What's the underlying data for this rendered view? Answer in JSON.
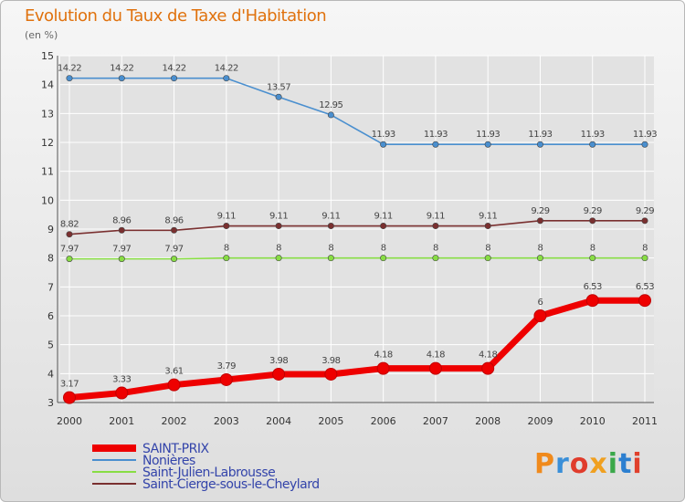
{
  "chart_data": {
    "type": "line",
    "title": "Evolution du Taux de Taxe d'Habitation",
    "subtitle": "(en %)",
    "x": [
      "2000",
      "2001",
      "2002",
      "2003",
      "2004",
      "2005",
      "2006",
      "2007",
      "2008",
      "2009",
      "2010",
      "2011"
    ],
    "ylim": [
      3,
      15
    ],
    "yticks": [
      3,
      4,
      5,
      6,
      7,
      8,
      9,
      10,
      11,
      12,
      13,
      14,
      15
    ],
    "grid": true,
    "legend_position": "bottom-left",
    "series": [
      {
        "name": "SAINT-PRIX",
        "color": "#ee0000",
        "emphasis": true,
        "values": [
          3.17,
          3.33,
          3.61,
          3.79,
          3.98,
          3.98,
          4.18,
          4.18,
          4.18,
          6,
          6.53,
          6.53
        ],
        "labels": [
          "3.17",
          "3.33",
          "3.61",
          "3.79",
          "3.98",
          "3.98",
          "4.18",
          "4.18",
          "4.18",
          "6",
          "6.53",
          "6.53"
        ]
      },
      {
        "name": "Nonières",
        "color": "#4a8fcf",
        "emphasis": false,
        "values": [
          14.22,
          14.22,
          14.22,
          14.22,
          13.57,
          12.95,
          11.93,
          11.93,
          11.93,
          11.93,
          11.93,
          11.93
        ],
        "labels": [
          "14.22",
          "14.22",
          "14.22",
          "14.22",
          "13.57",
          "12.95",
          "11.93",
          "11.93",
          "11.93",
          "11.93",
          "11.93",
          "11.93"
        ]
      },
      {
        "name": "Saint-Julien-Labrousse",
        "color": "#88dd44",
        "emphasis": false,
        "values": [
          7.97,
          7.97,
          7.97,
          8,
          8,
          8,
          8,
          8,
          8,
          8,
          8,
          8
        ],
        "labels": [
          "7.97",
          "7.97",
          "7.97",
          "8",
          "8",
          "8",
          "8",
          "8",
          "8",
          "8",
          "8",
          "8"
        ]
      },
      {
        "name": "Saint-Cierge-sous-le-Cheylard",
        "color": "#7a3030",
        "emphasis": false,
        "values": [
          8.82,
          8.96,
          8.96,
          9.11,
          9.11,
          9.11,
          9.11,
          9.11,
          9.11,
          9.29,
          9.29,
          9.29
        ],
        "labels": [
          "8.82",
          "8.96",
          "8.96",
          "9.11",
          "9.11",
          "9.11",
          "9.11",
          "9.11",
          "9.11",
          "9.29",
          "9.29",
          "9.29"
        ]
      }
    ]
  },
  "brand": {
    "logo_text": "Proxiti",
    "letter_colors": [
      "#f08a1c",
      "#3a8fd8",
      "#e03c2c",
      "#f0a020",
      "#3aa84a",
      "#2c7fd0",
      "#e0402c"
    ]
  },
  "colors": {
    "axis_label": "#333333",
    "grid": "#ffffff",
    "title": "#e0720e"
  }
}
